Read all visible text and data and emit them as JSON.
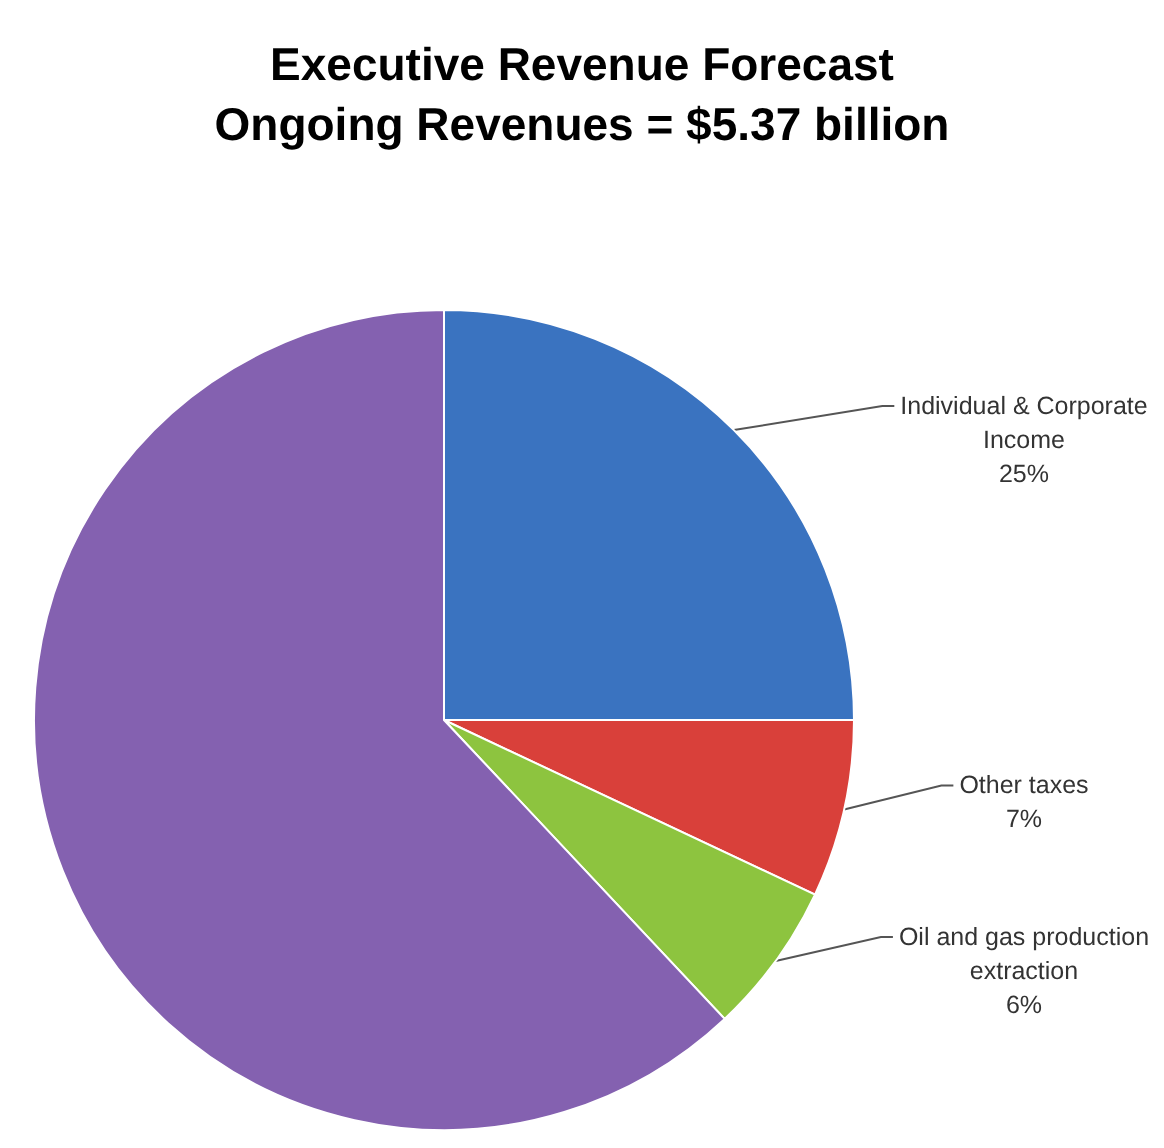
{
  "chart_data": {
    "type": "pie",
    "title": "Executive Revenue Forecast",
    "subtitle": "Ongoing Revenues = $5.37 billion",
    "categories": [
      "Individual & Corporate Income",
      "Other taxes",
      "Oil and gas production extraction",
      null
    ],
    "values": [
      25,
      7,
      6,
      62
    ],
    "colors": [
      "#3a73c0",
      "#d9403a",
      "#8dc43f",
      "#8461b0"
    ],
    "value_labels": [
      "25%",
      "7%",
      "6%",
      null
    ]
  }
}
